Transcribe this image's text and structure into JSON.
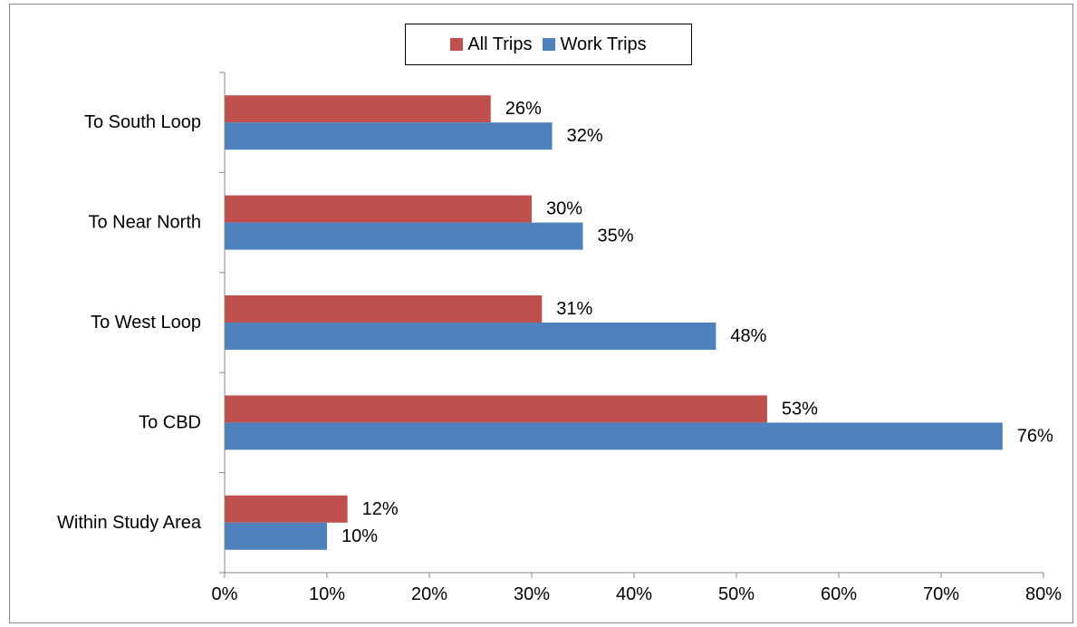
{
  "colors": {
    "all_trips": "#c0504d",
    "work_trips": "#4f81bd",
    "axis": "#868686"
  },
  "legend": {
    "all_label": "All Trips",
    "work_label": "Work Trips"
  },
  "chart_data": {
    "type": "bar",
    "orientation": "horizontal",
    "categories": [
      "To South Loop",
      "To Near North",
      "To West Loop",
      "To CBD",
      "Within Study Area"
    ],
    "series": [
      {
        "name": "All Trips",
        "values": [
          26,
          30,
          31,
          53,
          12
        ],
        "labels": [
          "26%",
          "30%",
          "31%",
          "53%",
          "12%"
        ]
      },
      {
        "name": "Work Trips",
        "values": [
          32,
          35,
          48,
          76,
          10
        ],
        "labels": [
          "32%",
          "35%",
          "48%",
          "76%",
          "10%"
        ]
      }
    ],
    "x_ticks": [
      "0%",
      "10%",
      "20%",
      "30%",
      "40%",
      "50%",
      "60%",
      "70%",
      "80%"
    ],
    "xlim": [
      0,
      80
    ],
    "xlabel": "",
    "ylabel": "",
    "grid": false,
    "legend_position": "top-center"
  }
}
